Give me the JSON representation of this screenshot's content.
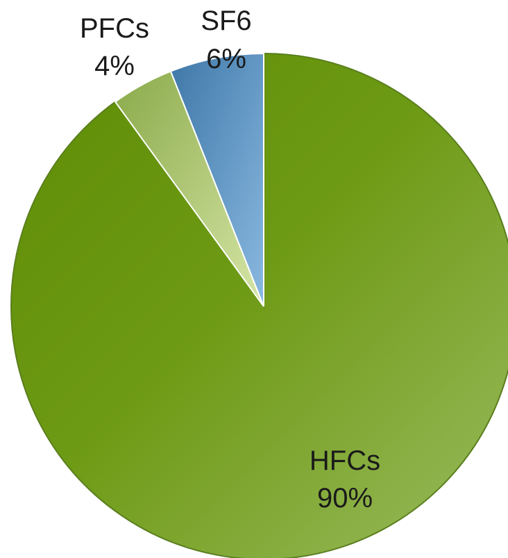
{
  "chart_data": {
    "type": "pie",
    "categories": [
      "HFCs",
      "PFCs",
      "SF6"
    ],
    "values": [
      90,
      4,
      6
    ],
    "value_labels": [
      "90%",
      "4%",
      "6%"
    ],
    "title": "",
    "legend": "none",
    "colors": {
      "HFCs": "#6f9a1a",
      "PFCs": "#b5cc7a",
      "SF6": "#5a8fc0"
    }
  }
}
